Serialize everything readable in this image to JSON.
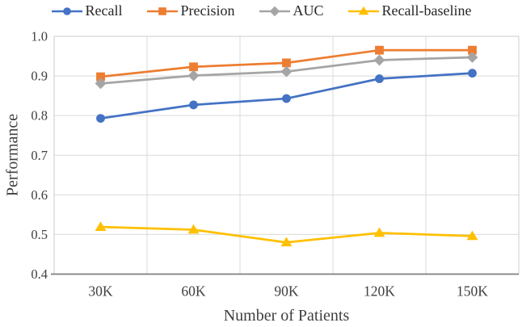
{
  "chart_data": {
    "type": "line",
    "title": "",
    "xlabel": "Number of Patients",
    "ylabel": "Performance",
    "categories": [
      "30K",
      "60K",
      "90K",
      "120K",
      "150K"
    ],
    "yticks": [
      "0.4",
      "0.5",
      "0.6",
      "0.7",
      "0.8",
      "0.9",
      "1.0"
    ],
    "ylim": [
      0.4,
      1.0
    ],
    "grid": "horizontal and vertical light-gray gridlines with full plot border",
    "legend_position": "top-center",
    "series": [
      {
        "name": "Recall",
        "marker": "circle",
        "color": "#4472C4",
        "values": [
          0.793,
          0.827,
          0.843,
          0.893,
          0.907
        ]
      },
      {
        "name": "Precision",
        "marker": "square",
        "color": "#ED7D31",
        "values": [
          0.898,
          0.923,
          0.933,
          0.965,
          0.965
        ]
      },
      {
        "name": "AUC",
        "marker": "diamond",
        "color": "#A5A5A5",
        "values": [
          0.881,
          0.901,
          0.911,
          0.94,
          0.947
        ]
      },
      {
        "name": "Recall-baseline",
        "marker": "triangle",
        "color": "#FFC000",
        "values": [
          0.519,
          0.512,
          0.48,
          0.504,
          0.496
        ]
      }
    ],
    "colors": {
      "gridline": "#D9D9D9",
      "plot_border": "#CCCCCC",
      "x_axis_line": "#7F7F7F",
      "tick_text": "#404040",
      "axis_title_text": "#3F3F3F",
      "background": "#FFFFFF"
    }
  }
}
